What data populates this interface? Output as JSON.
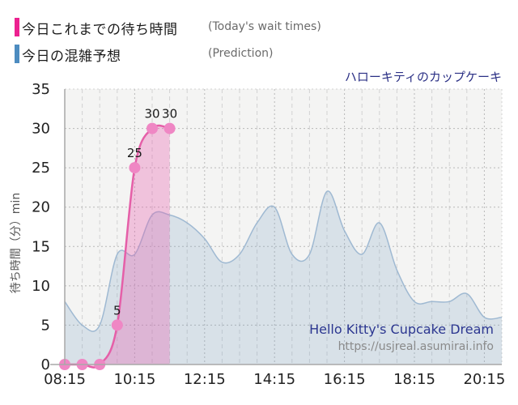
{
  "title": "ハローキティのカップケーキ",
  "legend": {
    "today": {
      "label_jp": "今日これまでの待ち時間",
      "label_en": "(Today's wait times)",
      "color": "#ec2190"
    },
    "prediction": {
      "label_jp": "今日の混雑予想",
      "label_en": "(Prediction)",
      "color": "#4d8cc0"
    }
  },
  "watermark": {
    "line1": "Hello Kitty's Cupcake Dream",
    "line2": "https://usjreal.asumirai.info"
  },
  "y_axis": {
    "title": "待ち時間（分）min",
    "ticks": [
      0,
      5,
      10,
      15,
      20,
      25,
      30,
      35
    ],
    "min": 0,
    "max": 35
  },
  "x_axis": {
    "tick_labels": [
      "08:15",
      "10:15",
      "12:15",
      "14:15",
      "16:15",
      "18:15",
      "20:15"
    ],
    "start": "08:15",
    "end": "20:45",
    "minor_step_minutes": 30
  },
  "chart_data": {
    "type": "area",
    "title": "ハローキティのカップケーキ",
    "ylabel": "待ち時間（分）min",
    "ylim": [
      0,
      35
    ],
    "xlim": [
      "08:15",
      "20:45"
    ],
    "grid": true,
    "legend_position": "top-left",
    "series": [
      {
        "name": "今日これまでの待ち時間 (Today's wait times)",
        "type": "line+area+points",
        "times": [
          "08:15",
          "08:45",
          "09:15",
          "09:45",
          "10:15",
          "10:45",
          "11:15"
        ],
        "values": [
          0,
          0,
          0,
          5,
          25,
          30,
          30
        ],
        "point_labels": [
          "",
          "",
          "",
          "5",
          "25",
          "30",
          "30"
        ]
      },
      {
        "name": "今日の混雑予想 (Prediction)",
        "type": "area",
        "times": [
          "08:15",
          "08:45",
          "09:15",
          "09:45",
          "10:15",
          "10:45",
          "11:15",
          "11:45",
          "12:15",
          "12:45",
          "13:15",
          "13:45",
          "14:15",
          "14:45",
          "15:15",
          "15:45",
          "16:15",
          "16:45",
          "17:15",
          "17:45",
          "18:15",
          "18:45",
          "19:15",
          "19:45",
          "20:15",
          "20:45"
        ],
        "values": [
          8,
          5,
          5,
          14,
          14,
          19,
          19,
          18,
          16,
          13,
          14,
          18,
          20,
          14,
          14,
          22,
          17,
          14,
          18,
          12,
          8,
          8,
          8,
          9,
          6,
          6
        ]
      }
    ]
  },
  "colors": {
    "actual_line": "#e55fa8",
    "actual_point": "#ef87c4",
    "actual_fill": "rgba(232,96,176,0.34)",
    "prediction_line": "#9fb9d2",
    "prediction_fill": "rgba(120,160,195,0.22)",
    "plot_bg": "#f4f4f3",
    "grid_major": "#b8b8b8",
    "grid_minor": "#d2d2d2",
    "axis_line": "#a8a8a8",
    "tick_text": "#222222",
    "point_label_text": "#1a1a1a",
    "axis_title_text": "#555555"
  }
}
